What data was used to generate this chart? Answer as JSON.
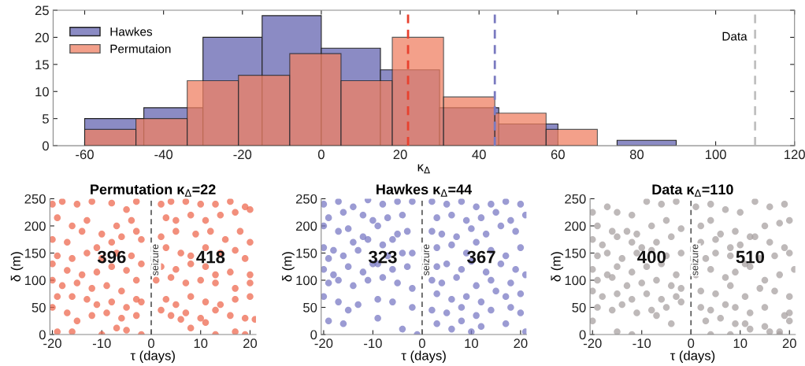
{
  "chart_data": [
    {
      "type": "histogram",
      "xlabel": "κ$_{Δ}$",
      "xlim": [
        -68,
        120
      ],
      "xticks": [
        -60,
        -40,
        -20,
        0,
        20,
        40,
        60,
        80,
        100,
        120
      ],
      "ylim": [
        0,
        25
      ],
      "yticks": [
        0,
        5,
        10,
        15,
        20,
        25
      ],
      "grid": false,
      "legend": "top left",
      "bins": [
        -60,
        -45,
        -30,
        -15,
        0,
        15,
        30,
        45,
        60,
        75,
        90
      ],
      "series": [
        {
          "name": "Hawkes",
          "color": "#8b8bc4",
          "values": [
            5,
            7,
            20,
            24,
            18,
            14,
            7,
            4,
            0,
            1
          ]
        },
        {
          "name": "Permutaion",
          "color": "#ef8063",
          "bins": [
            -60,
            -47,
            -34,
            -21,
            -8,
            5,
            18,
            31,
            44,
            57,
            70
          ],
          "values": [
            3,
            5,
            12,
            13,
            17,
            12,
            20,
            9,
            6,
            3
          ]
        }
      ],
      "ref_lines": [
        {
          "axis": "x",
          "value": 22,
          "color": "#e8412e",
          "line_style": "dashed"
        },
        {
          "axis": "x",
          "value": 44,
          "color": "#7a7ac0",
          "line_style": "dashed"
        },
        {
          "axis": "x",
          "value": 110,
          "label": "Data",
          "color": "#c0c0c0",
          "line_style": "dashed"
        }
      ]
    },
    {
      "type": "scatter",
      "title": "Permutation κ$_{Δ}$=22",
      "xlabel": "τ (days)",
      "ylabel": "δ (m)",
      "xlim": [
        -20.5,
        21.2
      ],
      "xticks": [
        -20,
        -10,
        0,
        10,
        20
      ],
      "ylim": [
        0,
        250
      ],
      "yticks": [
        0,
        50,
        100,
        150,
        200,
        250
      ],
      "grid": false,
      "marker": "circle",
      "annotations": [
        "396",
        "418"
      ],
      "ref_lines": [
        {
          "axis": "x",
          "value": 0,
          "label": "seizure",
          "color": "#555555",
          "line_style": "dashed"
        }
      ],
      "series": [
        {
          "color": "#ee6a50",
          "x": [
            -20,
            -18,
            -15,
            -12,
            -8,
            -5,
            -3,
            -19,
            -16,
            -13,
            -10,
            -7,
            -4,
            -2,
            -20,
            -17,
            -14,
            -11,
            -8,
            -6,
            -3,
            -19,
            -16,
            -13,
            -10,
            -7,
            -4,
            -2,
            -20,
            -17,
            -14,
            -11,
            -8,
            -5,
            -3,
            -20,
            -18,
            -15,
            -12,
            -9,
            -6,
            -3,
            -19,
            -16,
            -13,
            -11,
            -8,
            -5,
            -2,
            -20,
            -17,
            -15,
            -12,
            -9,
            -6,
            -3,
            -19,
            -16,
            -10,
            -7,
            -5,
            -2,
            2,
            4,
            7,
            10,
            13,
            16,
            19,
            3,
            5,
            8,
            11,
            14,
            17,
            20,
            2,
            5,
            9,
            12,
            15,
            18,
            20,
            3,
            6,
            8,
            11,
            14,
            17,
            19,
            2,
            5,
            8,
            11,
            13,
            16,
            20,
            1,
            4,
            7,
            10,
            13,
            17,
            20,
            3,
            5,
            8,
            11,
            14,
            17,
            20,
            2,
            4,
            7,
            10,
            13,
            16,
            19,
            6,
            8,
            11,
            13,
            17,
            19,
            21
          ],
          "values": [
            240,
            245,
            240,
            245,
            242,
            230,
            245,
            215,
            200,
            210,
            185,
            200,
            210,
            175,
            175,
            170,
            190,
            160,
            170,
            180,
            190,
            145,
            140,
            150,
            140,
            150,
            145,
            130,
            130,
            118,
            110,
            115,
            125,
            118,
            100,
            100,
            90,
            95,
            85,
            90,
            80,
            65,
            70,
            70,
            65,
            55,
            60,
            50,
            60,
            50,
            40,
            25,
            35,
            40,
            30,
            35,
            5,
            5,
            0,
            12,
            8,
            0,
            240,
            245,
            245,
            240,
            240,
            245,
            235,
            215,
            210,
            220,
            210,
            220,
            225,
            230,
            180,
            190,
            185,
            190,
            175,
            190,
            170,
            160,
            150,
            145,
            160,
            150,
            155,
            140,
            125,
            120,
            130,
            125,
            110,
            115,
            110,
            100,
            105,
            95,
            100,
            95,
            85,
            95,
            65,
            55,
            70,
            60,
            55,
            65,
            70,
            45,
            35,
            40,
            30,
            45,
            35,
            30,
            28,
            12,
            22,
            0,
            5,
            0,
            28
          ]
        }
      ]
    },
    {
      "type": "scatter",
      "title": "Hawkes κ$_{Δ}$=44",
      "xlabel": "τ (days)",
      "ylabel": "δ (m)",
      "xlim": [
        -20.5,
        21.2
      ],
      "xticks": [
        -20,
        -10,
        0,
        10,
        20
      ],
      "ylim": [
        0,
        250
      ],
      "yticks": [
        0,
        50,
        100,
        150,
        200,
        250
      ],
      "grid": false,
      "marker": "circle",
      "annotations": [
        "323",
        "367"
      ],
      "ref_lines": [
        {
          "axis": "x",
          "value": 0,
          "label": "seizure",
          "color": "#555555",
          "line_style": "dashed"
        }
      ],
      "series": [
        {
          "color": "#7a7ac4",
          "x": [
            -20,
            -17,
            -14,
            -11,
            -8,
            -5,
            -2,
            -19,
            -16,
            -12,
            -10,
            -7,
            -4,
            -20,
            -17,
            -15,
            -12,
            -9,
            -5,
            -3,
            -20,
            -18,
            -14,
            -11,
            -8,
            -6,
            -2,
            -19,
            -16,
            -13,
            -10,
            -7,
            -4,
            -20,
            -18,
            -15,
            -12,
            -9,
            -6,
            -3,
            -19,
            -17,
            -14,
            -11,
            -8,
            -5,
            -2,
            -20,
            -17,
            -15,
            -13,
            -9,
            -6,
            -2,
            -19,
            -16,
            -9,
            -4,
            -1,
            2,
            5,
            8,
            11,
            14,
            17,
            20,
            3,
            6,
            9,
            12,
            15,
            18,
            21,
            2,
            4,
            7,
            10,
            13,
            16,
            19,
            3,
            6,
            9,
            11,
            14,
            17,
            20,
            3,
            5,
            8,
            10,
            13,
            16,
            19,
            2,
            4,
            7,
            11,
            14,
            18,
            21,
            3,
            6,
            9,
            12,
            15,
            17,
            20,
            2,
            5,
            8,
            11,
            14,
            18,
            20,
            3,
            6,
            8,
            10,
            12,
            17,
            21
          ],
          "values": [
            240,
            245,
            235,
            248,
            240,
            245,
            245,
            215,
            225,
            220,
            210,
            215,
            220,
            200,
            190,
            195,
            180,
            200,
            185,
            190,
            160,
            155,
            170,
            175,
            165,
            175,
            150,
            140,
            145,
            155,
            130,
            145,
            150,
            120,
            110,
            125,
            115,
            130,
            120,
            125,
            95,
            100,
            90,
            100,
            105,
            95,
            85,
            70,
            60,
            45,
            55,
            65,
            60,
            50,
            25,
            20,
            30,
            10,
            0,
            245,
            240,
            245,
            235,
            240,
            245,
            240,
            215,
            220,
            210,
            215,
            225,
            210,
            220,
            190,
            185,
            180,
            195,
            185,
            200,
            190,
            160,
            165,
            150,
            170,
            155,
            145,
            160,
            125,
            130,
            120,
            135,
            115,
            130,
            120,
            100,
            95,
            105,
            90,
            100,
            95,
            110,
            75,
            65,
            70,
            60,
            80,
            70,
            75,
            45,
            40,
            50,
            35,
            45,
            50,
            40,
            20,
            10,
            25,
            5,
            15,
            20,
            5
          ]
        }
      ]
    },
    {
      "type": "scatter",
      "title": "Data κ$_{Δ}$=110",
      "xlabel": "τ (days)",
      "ylabel": "δ (m)",
      "xlim": [
        -20.5,
        21.2
      ],
      "xticks": [
        -20,
        -10,
        0,
        10,
        20
      ],
      "ylim": [
        0,
        250
      ],
      "yticks": [
        0,
        50,
        100,
        150,
        200,
        250
      ],
      "grid": false,
      "marker": "circle",
      "annotations": [
        "400",
        "510"
      ],
      "ref_lines": [
        {
          "axis": "x",
          "value": 0,
          "label": "seizure",
          "color": "#555555",
          "line_style": "dashed"
        }
      ],
      "series": [
        {
          "color": "#a8a2a2",
          "x": [
            -20,
            -17,
            -15,
            -12,
            -9,
            -6,
            -3,
            -19,
            -16,
            -13,
            -11,
            -8,
            -5,
            -2,
            -20,
            -18,
            -15,
            -12,
            -10,
            -7,
            -4,
            -19,
            -17,
            -14,
            -11,
            -8,
            -5,
            -2,
            -20,
            -17,
            -15,
            -12,
            -9,
            -6,
            -3,
            -19,
            -16,
            -13,
            -10,
            -7,
            -4,
            -2,
            -20,
            -18,
            -15,
            -12,
            -9,
            -6,
            -3,
            -19,
            -16,
            -14,
            -11,
            -8,
            -5,
            -2,
            -20,
            -15,
            -12,
            -7,
            -4,
            1,
            4,
            7,
            10,
            13,
            16,
            19,
            2,
            4,
            6,
            9,
            12,
            15,
            18,
            20,
            2,
            5,
            8,
            10,
            13,
            16,
            19,
            3,
            5,
            8,
            11,
            14,
            17,
            20,
            1,
            4,
            7,
            9,
            12,
            15,
            18,
            21,
            2,
            5,
            8,
            11,
            14,
            17,
            20,
            2,
            4,
            7,
            9,
            12,
            15,
            19,
            3,
            6,
            9,
            12,
            15,
            18,
            20,
            4,
            8,
            11,
            16,
            18,
            20
          ],
          "values": [
            225,
            235,
            225,
            220,
            245,
            240,
            245,
            200,
            190,
            190,
            185,
            200,
            210,
            195,
            175,
            165,
            180,
            170,
            160,
            170,
            180,
            145,
            150,
            140,
            150,
            155,
            145,
            150,
            120,
            110,
            125,
            115,
            125,
            130,
            110,
            100,
            105,
            90,
            95,
            100,
            90,
            85,
            80,
            70,
            75,
            65,
            75,
            65,
            70,
            50,
            45,
            55,
            40,
            45,
            50,
            60,
            25,
            5,
            0,
            35,
            20,
            235,
            240,
            230,
            225,
            245,
            235,
            240,
            200,
            210,
            185,
            190,
            180,
            200,
            205,
            210,
            170,
            175,
            160,
            165,
            180,
            170,
            160,
            140,
            150,
            145,
            130,
            140,
            145,
            150,
            110,
            120,
            105,
            115,
            125,
            100,
            110,
            120,
            80,
            75,
            90,
            70,
            85,
            80,
            70,
            50,
            45,
            55,
            50,
            40,
            50,
            35,
            25,
            30,
            20,
            10,
            15,
            5,
            25,
            0,
            0,
            20,
            5,
            0,
            40
          ]
        }
      ]
    }
  ]
}
